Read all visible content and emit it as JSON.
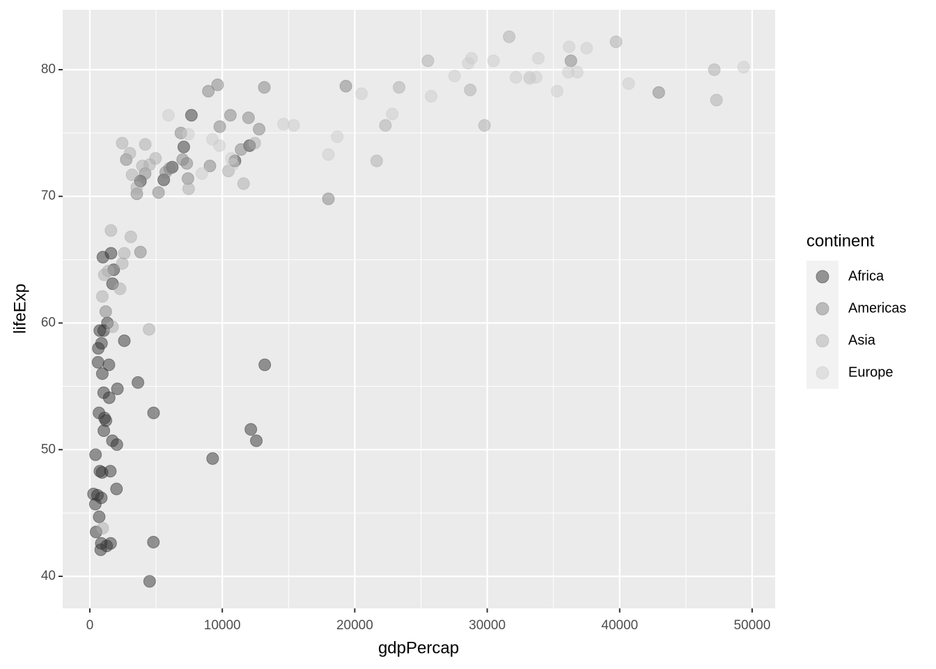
{
  "chart_data": {
    "type": "scatter",
    "x_label": "gdpPercap",
    "y_label": "lifeExp",
    "legend_title": "continent",
    "xlim": [
      -2050,
      51735
    ],
    "ylim": [
      37.47,
      84.73
    ],
    "xticks": [
      0,
      10000,
      20000,
      30000,
      40000,
      50000
    ],
    "yticks": [
      40,
      50,
      60,
      70,
      80
    ],
    "grid": true,
    "minor_grid": true,
    "legend": "right",
    "opacity": 0.5,
    "series": [
      {
        "name": "Africa",
        "color": "#333333",
        "x": [
          6223,
          4797,
          1441,
          12570,
          1217,
          430,
          2042,
          706,
          1704,
          986,
          278,
          3633,
          1545,
          2082,
          5581,
          12154,
          641,
          691,
          13206,
          753,
          1328,
          943,
          579,
          1463,
          1569,
          415,
          12057,
          1045,
          759,
          1043,
          1803,
          10957,
          3820,
          824,
          4811,
          620,
          2014,
          7670,
          863,
          1598,
          1712,
          863,
          926,
          9270,
          2602,
          4513,
          1107,
          883,
          7093,
          1056,
          1271,
          470
        ],
        "values": [
          72.3,
          42.7,
          56.7,
          50.7,
          52.3,
          49.6,
          50.4,
          44.7,
          50.7,
          65.2,
          46.5,
          55.3,
          48.3,
          54.8,
          71.3,
          51.6,
          58.0,
          52.9,
          56.7,
          59.4,
          60.0,
          56.0,
          46.4,
          54.1,
          42.6,
          45.7,
          74.0,
          59.4,
          48.3,
          54.5,
          64.2,
          72.8,
          71.2,
          42.1,
          52.9,
          56.9,
          46.9,
          76.4,
          46.2,
          65.5,
          63.1,
          42.6,
          48.2,
          49.3,
          58.6,
          39.6,
          52.5,
          58.4,
          73.9,
          51.5,
          42.4,
          43.5
        ]
      },
      {
        "name": "Americas",
        "color": "#818181",
        "x": [
          12779,
          3822,
          9066,
          36319,
          13172,
          7007,
          9645,
          8948,
          6025,
          6873,
          5728,
          5186,
          1202,
          3548,
          7321,
          11978,
          2749,
          9809,
          4173,
          7409,
          19329,
          18009,
          42952,
          10611,
          11416
        ],
        "values": [
          75.3,
          65.6,
          72.4,
          80.7,
          78.6,
          72.9,
          78.8,
          78.3,
          72.2,
          75.0,
          71.9,
          70.3,
          60.9,
          70.2,
          72.6,
          76.2,
          72.9,
          75.5,
          71.8,
          71.4,
          78.7,
          69.8,
          78.2,
          76.4,
          73.7
        ]
      },
      {
        "name": "Asia",
        "color": "#ABABAB",
        "x": [
          975,
          29796,
          1391,
          1714,
          4959,
          39725,
          2452,
          3541,
          11606,
          4471,
          25523,
          31656,
          4519,
          1593,
          23348,
          47307,
          10461,
          12452,
          3096,
          944,
          1091,
          22316,
          2606,
          3190,
          21655,
          47143,
          3970,
          4185,
          28718,
          7458,
          2442,
          3025,
          2281
        ],
        "values": [
          43.8,
          75.6,
          64.1,
          59.7,
          73.0,
          82.2,
          64.7,
          70.7,
          71.0,
          59.5,
          80.7,
          82.6,
          72.5,
          67.3,
          78.6,
          77.6,
          72.0,
          74.2,
          66.8,
          62.1,
          63.8,
          75.6,
          65.5,
          71.7,
          72.8,
          80.0,
          72.4,
          74.1,
          78.4,
          70.6,
          74.2,
          73.4,
          62.7
        ]
      },
      {
        "name": "Europe",
        "color": "#CCCCCC",
        "x": [
          5937,
          36126,
          33693,
          7446,
          10681,
          14619,
          22833,
          35278,
          33207,
          30470,
          32170,
          27538,
          18009,
          36181,
          40676,
          28570,
          9254,
          36798,
          49357,
          15390,
          20510,
          10808,
          9787,
          18678,
          25768,
          28821,
          33860,
          37506,
          8458,
          33203
        ],
        "values": [
          76.4,
          79.8,
          79.4,
          74.9,
          73.0,
          75.7,
          76.5,
          78.3,
          79.3,
          80.7,
          79.4,
          79.5,
          73.3,
          81.8,
          78.9,
          80.5,
          74.5,
          79.8,
          80.2,
          75.6,
          78.1,
          72.5,
          74.0,
          74.7,
          77.9,
          80.9,
          80.9,
          81.7,
          71.8,
          79.4
        ]
      }
    ]
  }
}
